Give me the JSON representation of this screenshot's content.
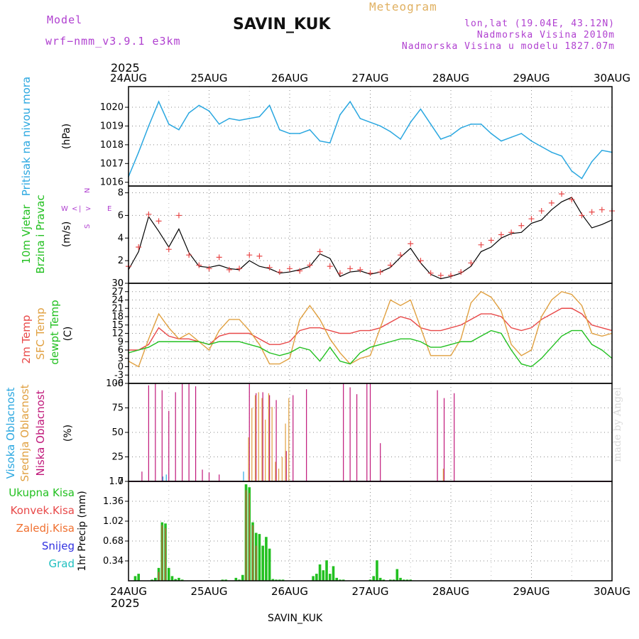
{
  "header": {
    "model_label": "Model",
    "model_name": "wrf−nmm_v3.9.1 e3km",
    "station": "SAVIN_KUK",
    "meteogram_label": "Meteogram",
    "coords": "lon,lat (19.04E, 43.12N)",
    "elevation": "Nadmorska Visina 2010m",
    "model_elevation": "Nadmorska Visina u modelu 1827.07m",
    "credit": "made by Angel",
    "footer_station": "SAVIN_KUK"
  },
  "time_axis": {
    "year": "2025",
    "labels": [
      "24AUG",
      "25AUG",
      "26AUG",
      "27AUG",
      "28AUG",
      "29AUG",
      "30AUG"
    ]
  },
  "colors": {
    "pressure": "#2aa7e0",
    "wind_green": "#22c020",
    "temp2m": "#e84848",
    "sfc": "#e0a040",
    "dew": "#22c020",
    "high_cloud": "#2aa7e0",
    "mid_cloud": "#e0a040",
    "low_cloud": "#c0187a",
    "total_precip": "#22c020",
    "conv_precip": "#e84848",
    "ice_precip": "#f07030",
    "snow": "#3030e0",
    "hail": "#20c0c0",
    "wind_axis": "#b040d0"
  },
  "chart_data": [
    {
      "type": "line",
      "title": "Pritisak na nivou mora",
      "ylabel": "(hPa)",
      "ylim": [
        1015.8,
        1021.1
      ],
      "yticks": [
        1016,
        1017,
        1018,
        1019,
        1020
      ],
      "x_hours": [
        0,
        3,
        6,
        9,
        12,
        15,
        18,
        21,
        24,
        27,
        30,
        33,
        36,
        39,
        42,
        45,
        48,
        51,
        54,
        57,
        60,
        63,
        66,
        69,
        72,
        75,
        78,
        81,
        84,
        87,
        90,
        93,
        96,
        99,
        102,
        105,
        108,
        111,
        114,
        117,
        120,
        123,
        126,
        129,
        132,
        135,
        138,
        141,
        144
      ],
      "series": [
        {
          "name": "pressure",
          "values": [
            1016.3,
            1017.6,
            1019.0,
            1020.3,
            1019.1,
            1018.8,
            1019.7,
            1020.1,
            1019.8,
            1019.1,
            1019.4,
            1019.3,
            1019.4,
            1019.5,
            1020.1,
            1018.8,
            1018.6,
            1018.6,
            1018.8,
            1018.2,
            1018.1,
            1019.6,
            1020.3,
            1019.4,
            1019.2,
            1019.0,
            1018.7,
            1018.3,
            1019.2,
            1019.9,
            1019.1,
            1018.3,
            1018.5,
            1018.9,
            1019.1,
            1019.1,
            1018.6,
            1018.2,
            1018.4,
            1018.6,
            1018.2,
            1017.9,
            1017.6,
            1017.4,
            1016.6,
            1016.2,
            1017.1,
            1017.7,
            1017.6
          ]
        }
      ],
      "legend": []
    },
    {
      "type": "line",
      "title": "10m Vjetar Brzina i Pravac",
      "ylabel": "(m/s)",
      "ylim": [
        0,
        8.6
      ],
      "yticks": [
        0,
        2,
        4,
        6,
        8
      ],
      "x_hours": [
        0,
        3,
        6,
        9,
        12,
        15,
        18,
        21,
        24,
        27,
        30,
        33,
        36,
        39,
        42,
        45,
        48,
        51,
        54,
        57,
        60,
        63,
        66,
        69,
        72,
        75,
        78,
        81,
        84,
        87,
        90,
        93,
        96,
        99,
        102,
        105,
        108,
        111,
        114,
        117,
        120,
        123,
        126,
        129,
        132,
        135,
        138,
        141,
        144
      ],
      "series": [
        {
          "name": "mean_speed",
          "values": [
            1.2,
            2.8,
            5.9,
            4.6,
            3.2,
            4.8,
            2.7,
            1.5,
            1.4,
            1.6,
            1.3,
            1.2,
            2.0,
            1.5,
            1.3,
            0.9,
            1.0,
            1.2,
            1.5,
            2.6,
            2.2,
            0.6,
            1.0,
            1.1,
            0.8,
            1.0,
            1.4,
            2.3,
            3.1,
            1.8,
            0.8,
            0.4,
            0.6,
            0.9,
            1.5,
            2.8,
            3.2,
            4.0,
            4.4,
            4.5,
            5.3,
            5.6,
            6.5,
            7.2,
            7.6,
            6.1,
            4.9,
            5.2,
            5.6
          ]
        },
        {
          "name": "gust_speed",
          "values": [
            1.5,
            3.2,
            6.1,
            5.5,
            3.0,
            6.0,
            2.5,
            1.6,
            1.3,
            2.3,
            1.2,
            1.3,
            2.5,
            2.4,
            1.4,
            1.0,
            1.3,
            1.1,
            1.6,
            2.8,
            1.5,
            0.9,
            1.3,
            1.2,
            0.9,
            1.0,
            1.6,
            2.5,
            3.5,
            2.0,
            0.9,
            0.7,
            0.7,
            1.0,
            1.8,
            3.4,
            3.8,
            4.3,
            4.5,
            5.1,
            5.7,
            6.4,
            7.1,
            7.9,
            7.4,
            6.0,
            6.3,
            6.5,
            6.4
          ]
        }
      ],
      "legend": [
        "W",
        "<",
        "|",
        ">",
        "E",
        "N",
        "v",
        "^",
        "S"
      ]
    },
    {
      "type": "line",
      "title": "2m Temp / SFC Temp / dewpt Temp",
      "ylabel": "(C)",
      "ylim": [
        -6,
        30
      ],
      "yticks": [
        -6,
        -3,
        0,
        3,
        6,
        9,
        12,
        15,
        18,
        21,
        24,
        27,
        30
      ],
      "x_hours": [
        0,
        3,
        6,
        9,
        12,
        15,
        18,
        21,
        24,
        27,
        30,
        33,
        36,
        39,
        42,
        45,
        48,
        51,
        54,
        57,
        60,
        63,
        66,
        69,
        72,
        75,
        78,
        81,
        84,
        87,
        90,
        93,
        96,
        99,
        102,
        105,
        108,
        111,
        114,
        117,
        120,
        123,
        126,
        129,
        132,
        135,
        138,
        141,
        144
      ],
      "series": [
        {
          "name": "2m Temp",
          "values": [
            6,
            6,
            8,
            14,
            11,
            10,
            10,
            9,
            8,
            11,
            12,
            12,
            12,
            10,
            8,
            8,
            9,
            13,
            14,
            14,
            13,
            12,
            12,
            13,
            13,
            14,
            16,
            18,
            17,
            14,
            13,
            13,
            14,
            15,
            17,
            19,
            19,
            18,
            14,
            13,
            14,
            17,
            19,
            21,
            21,
            19,
            15,
            14,
            13
          ]
        },
        {
          "name": "SFC Temp",
          "values": [
            2,
            0,
            10,
            19,
            14,
            10,
            12,
            9,
            6,
            13,
            17,
            17,
            13,
            8,
            1,
            1,
            3,
            17,
            22,
            17,
            10,
            5,
            1,
            3,
            4,
            14,
            24,
            22,
            24,
            14,
            4,
            4,
            4,
            10,
            23,
            27,
            25,
            20,
            8,
            4,
            6,
            18,
            24,
            27,
            26,
            22,
            12,
            11,
            12
          ]
        },
        {
          "name": "dewpt Temp",
          "values": [
            5,
            6,
            7,
            9,
            9,
            9,
            9,
            9,
            8,
            9,
            9,
            9,
            8,
            7,
            5,
            4,
            5,
            7,
            6,
            2,
            7,
            2,
            1,
            5,
            7,
            8,
            9,
            10,
            10,
            9,
            7,
            7,
            8,
            9,
            9,
            11,
            13,
            12,
            6,
            1,
            0,
            3,
            7,
            11,
            13,
            13,
            8,
            6,
            3
          ]
        }
      ],
      "legend": [
        "2m Temp",
        "SFC Temp",
        "dewpt Temp"
      ]
    },
    {
      "type": "bar",
      "title": "Visoka / Srednja / Niska Oblacnost",
      "ylabel": "(%)",
      "ylim": [
        0,
        100
      ],
      "yticks": [
        0,
        25,
        50,
        75,
        100
      ],
      "series": [
        {
          "name": "Niska Oblacnost",
          "x_hours": [
            4,
            6,
            8,
            10,
            12,
            14,
            16,
            18,
            20,
            22,
            24,
            27,
            36,
            38,
            40,
            42,
            44,
            47,
            49,
            53,
            64,
            66,
            68,
            71,
            72,
            75,
            92,
            94,
            97
          ],
          "values": [
            10,
            98,
            100,
            93,
            72,
            91,
            100,
            100,
            97,
            12,
            9,
            7,
            100,
            90,
            91,
            88,
            83,
            31,
            88,
            94,
            100,
            96,
            89,
            100,
            100,
            39,
            93,
            85,
            90
          ]
        },
        {
          "name": "Srednja Oblacnost",
          "x_hours": [
            36,
            37,
            38,
            39,
            40,
            41,
            42,
            43,
            44,
            45,
            46,
            47,
            48,
            94
          ],
          "values": [
            45,
            75,
            88,
            91,
            85,
            63,
            90,
            76,
            20,
            13,
            25,
            59,
            85,
            13
          ]
        },
        {
          "name": "Visoka Oblacnost",
          "x_hours": [
            10,
            11,
            34
          ],
          "values": [
            5,
            7,
            10
          ]
        }
      ],
      "legend": [
        "Visoka Oblacnost",
        "Srednja Oblacnost",
        "Niska Oblacnost"
      ]
    },
    {
      "type": "bar",
      "title": "1hr Precip",
      "ylabel": "(mm)",
      "ylim": [
        0,
        1.7
      ],
      "yticks": [
        0.34,
        0.68,
        1.02,
        1.36,
        1.7
      ],
      "series": [
        {
          "name": "Ukupna Kisa",
          "x_hours": [
            2,
            3,
            7,
            8,
            9,
            10,
            11,
            12,
            13,
            14,
            15,
            16,
            28,
            29,
            32,
            33,
            34,
            35,
            36,
            37,
            38,
            39,
            40,
            41,
            42,
            43,
            44,
            45,
            46,
            55,
            56,
            57,
            58,
            59,
            60,
            61,
            62,
            63,
            64,
            72,
            73,
            74,
            75,
            76,
            78,
            79,
            80,
            81,
            82,
            83,
            84
          ],
          "values": [
            0.08,
            0.12,
            0.02,
            0.05,
            0.22,
            1.0,
            0.98,
            0.22,
            0.08,
            0.03,
            0.05,
            0.02,
            0.02,
            0.02,
            0.05,
            0.02,
            0.1,
            1.65,
            1.6,
            1.0,
            0.82,
            0.8,
            0.6,
            0.75,
            0.55,
            0.03,
            0.02,
            0.02,
            0.02,
            0.08,
            0.12,
            0.28,
            0.18,
            0.35,
            0.12,
            0.25,
            0.05,
            0.02,
            0.02,
            0.02,
            0.08,
            0.35,
            0.05,
            0.02,
            0.02,
            0.02,
            0.2,
            0.05,
            0.02,
            0.02,
            0.02
          ]
        },
        {
          "name": "Konvek.Kisa",
          "x_hours": [
            9,
            10,
            11,
            35,
            36,
            37,
            38
          ],
          "values": [
            0.15,
            0.95,
            0.9,
            1.55,
            1.5,
            0.95,
            0.6
          ]
        }
      ],
      "legend": [
        "Ukupna Kisa",
        "Konvek.Kisa",
        "Zaledj.Kisa",
        "Snijeg",
        "Grad"
      ]
    }
  ]
}
